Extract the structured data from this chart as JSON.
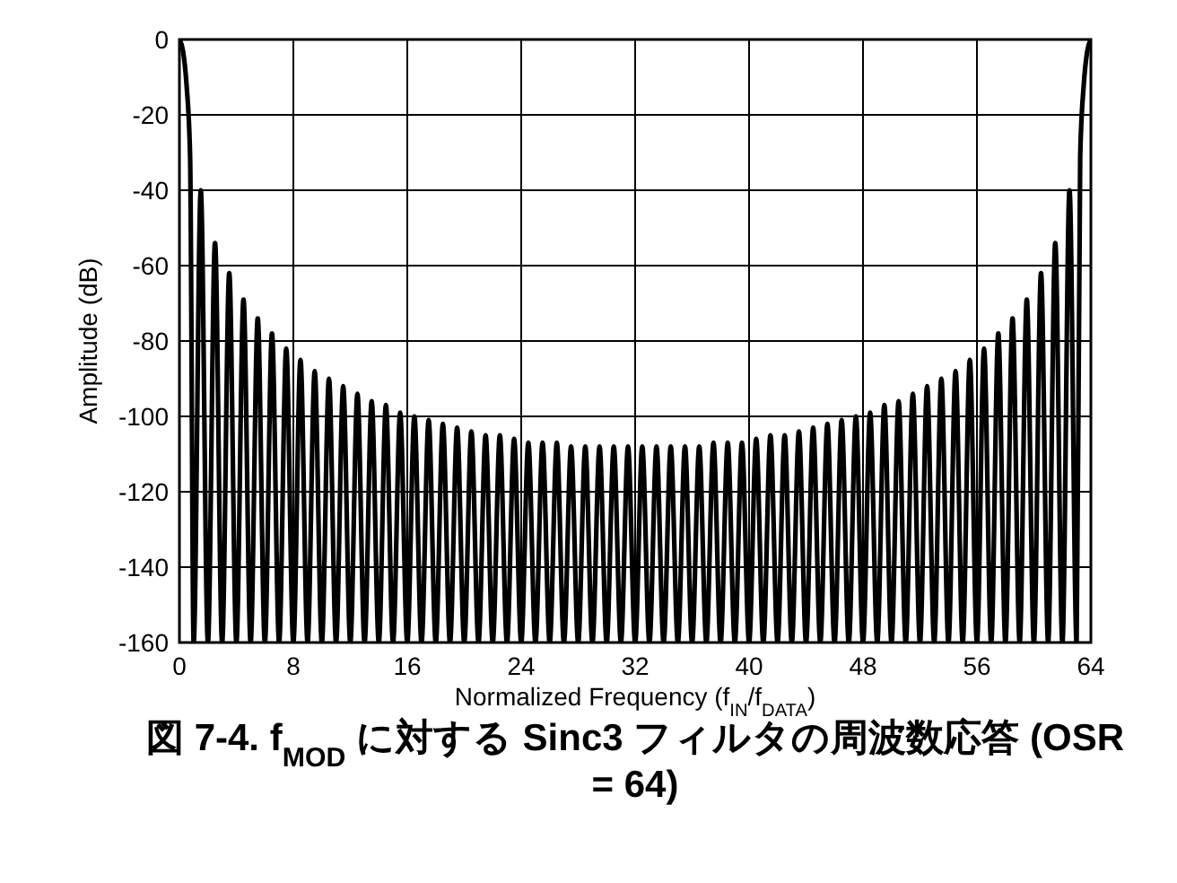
{
  "chart_data": {
    "type": "line",
    "title": "図 7-4. f$_{MOD}$ に対する Sinc3 フィルタの周波数応答 (OSR = 64)",
    "xlabel": "Normalized Frequency (f$_{IN}$/f$_{DATA}$)",
    "ylabel": "Amplitude (dB)",
    "xlim": [
      0,
      64
    ],
    "xticks": [
      0,
      8,
      16,
      24,
      32,
      40,
      48,
      56,
      64
    ],
    "ylim": [
      -160,
      0
    ],
    "yticks": [
      0,
      -20,
      -40,
      -60,
      -80,
      -100,
      -120,
      -140,
      -160
    ],
    "grid": true,
    "marker": "none",
    "line_style": "solid",
    "series": [
      {
        "color": "#000000",
        "x": [
          0,
          0.25,
          0.5,
          0.75,
          1,
          1.5,
          2,
          2.5,
          3,
          3.5,
          4,
          4.5,
          5,
          5.5,
          6,
          6.5,
          7,
          7.5,
          8,
          8.5,
          9,
          9.5,
          10,
          10.5,
          11,
          11.5,
          12,
          12.5,
          13,
          13.5,
          14,
          14.5,
          15,
          15.5,
          16,
          16.5,
          17,
          17.5,
          18,
          18.5,
          19,
          19.5,
          20,
          20.5,
          21,
          21.5,
          22,
          22.5,
          23,
          23.5,
          24,
          24.5,
          25,
          25.5,
          26,
          26.5,
          27,
          27.5,
          28,
          28.5,
          29,
          29.5,
          30,
          30.5,
          31,
          31.5,
          32,
          32.5,
          33,
          33.5,
          34,
          34.5,
          35,
          35.5,
          36,
          36.5,
          37,
          37.5,
          38,
          38.5,
          39,
          39.5,
          40,
          40.5,
          41,
          41.5,
          42,
          42.5,
          43,
          43.5,
          44,
          44.5,
          45,
          45.5,
          46,
          46.5,
          47,
          47.5,
          48,
          48.5,
          49,
          49.5,
          50,
          50.5,
          51,
          51.5,
          52,
          52.5,
          53,
          53.5,
          54,
          54.5,
          55,
          55.5,
          56,
          56.5,
          57,
          57.5,
          58,
          58.5,
          59,
          59.5,
          60,
          60.5,
          61,
          61.5,
          62,
          62.5,
          63,
          63.25,
          63.5,
          63.75,
          64
        ],
        "values": [
          0,
          -3,
          -12,
          -31,
          -160,
          -40,
          -160,
          -54,
          -160,
          -62,
          -160,
          -69,
          -160,
          -74,
          -160,
          -78,
          -160,
          -82,
          -160,
          -85,
          -160,
          -88,
          -160,
          -90,
          -160,
          -92,
          -160,
          -94,
          -160,
          -96,
          -160,
          -97,
          -160,
          -99,
          -160,
          -100,
          -160,
          -101,
          -160,
          -102,
          -160,
          -103,
          -160,
          -104,
          -160,
          -105,
          -160,
          -105,
          -160,
          -106,
          -160,
          -107,
          -160,
          -107,
          -160,
          -107,
          -160,
          -108,
          -160,
          -108,
          -160,
          -108,
          -160,
          -108,
          -160,
          -108,
          -160,
          -108,
          -160,
          -108,
          -160,
          -108,
          -160,
          -108,
          -160,
          -108,
          -160,
          -107,
          -160,
          -107,
          -160,
          -107,
          -160,
          -106,
          -160,
          -105,
          -160,
          -105,
          -160,
          -104,
          -160,
          -103,
          -160,
          -102,
          -160,
          -101,
          -160,
          -100,
          -160,
          -99,
          -160,
          -97,
          -160,
          -96,
          -160,
          -94,
          -160,
          -92,
          -160,
          -90,
          -160,
          -88,
          -160,
          -85,
          -160,
          -82,
          -160,
          -78,
          -160,
          -74,
          -160,
          -69,
          -160,
          -62,
          -160,
          -54,
          -160,
          -40,
          -160,
          -31,
          -12,
          -3,
          0
        ]
      }
    ]
  }
}
